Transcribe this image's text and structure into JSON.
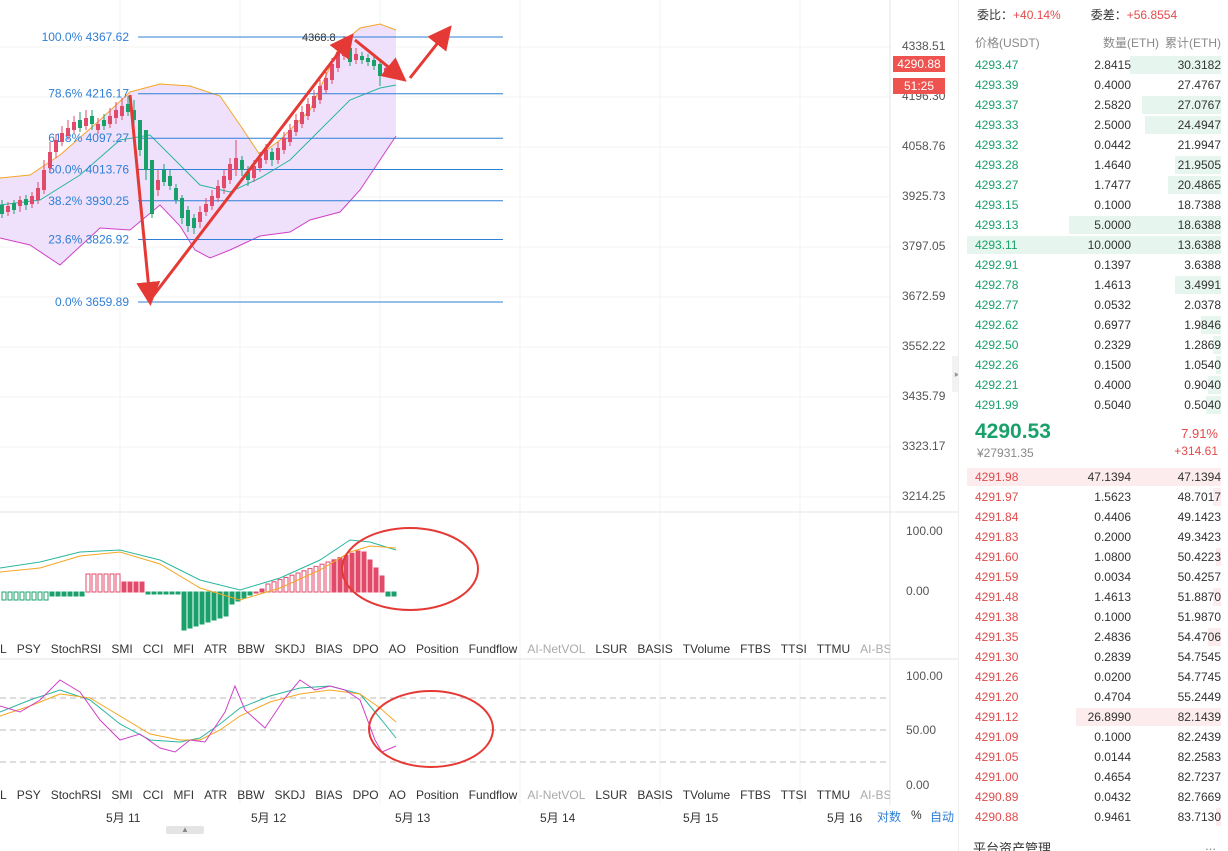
{
  "chart": {
    "price_scale": [
      "4338.51",
      "4196.30",
      "4058.76",
      "3925.73",
      "3797.05",
      "3672.59",
      "3552.22",
      "3435.79",
      "3323.17",
      "3214.25"
    ],
    "last_price_tag": "4290.88",
    "countdown_tag": "51:25",
    "peak_label": "4368.8",
    "fib_levels": [
      {
        "label": "100.0% 4367.62"
      },
      {
        "label": "78.6% 4216.17"
      },
      {
        "label": "61.8% 4097.27"
      },
      {
        "label": "50.0% 4013.76"
      },
      {
        "label": "38.2% 3930.25"
      },
      {
        "label": "23.6% 3826.92"
      },
      {
        "label": "0.0% 3659.89"
      }
    ],
    "macd_scale": [
      "100.00",
      "0.00"
    ],
    "kdj_scale": [
      "100.00",
      "50.00",
      "0.00"
    ],
    "indicator_tabs": [
      "L",
      "PSY",
      "StochRSI",
      "SMI",
      "CCI",
      "MFI",
      "ATR",
      "BBW",
      "SKDJ",
      "BIAS",
      "DPO",
      "AO",
      "Position",
      "Fundflow",
      "AI-NetVOL",
      "LSUR",
      "BASIS",
      "TVolume",
      "FTBS",
      "TTSI",
      "TTMU",
      "AI-BSI"
    ],
    "muted_tabs": [
      "AI-NetVOL",
      "AI-BSI"
    ],
    "dates": [
      "5月 11",
      "5月 12",
      "5月 13",
      "5月 14",
      "5月 15",
      "5月 16"
    ],
    "axis_controls": {
      "log": "对数",
      "percent": "%",
      "auto": "自动"
    },
    "colors": {
      "up": "#e24a6a",
      "down": "#1aa16b",
      "fib": "#2e7fd6",
      "annotation": "#e53935",
      "band_fill": "#efe0fb"
    }
  },
  "order_book": {
    "stats": [
      {
        "key": "委比：",
        "value": "+40.14%"
      },
      {
        "key": "委差：",
        "value": "+56.8554"
      }
    ],
    "headers": {
      "price": "价格(USDT)",
      "amount": "数量(ETH)",
      "total": "累计(ETH)"
    },
    "bids": [
      {
        "price": "4293.47",
        "amount": "2.8415",
        "total": "30.3182",
        "depth": 0.36
      },
      {
        "price": "4293.39",
        "amount": "0.4000",
        "total": "27.4767",
        "depth": 0.0
      },
      {
        "price": "4293.37",
        "amount": "2.5820",
        "total": "27.0767",
        "depth": 0.31
      },
      {
        "price": "4293.33",
        "amount": "2.5000",
        "total": "24.4947",
        "depth": 0.3
      },
      {
        "price": "4293.32",
        "amount": "0.0442",
        "total": "21.9947",
        "depth": 0.0
      },
      {
        "price": "4293.28",
        "amount": "1.4640",
        "total": "21.9505",
        "depth": 0.18
      },
      {
        "price": "4293.27",
        "amount": "1.7477",
        "total": "20.4865",
        "depth": 0.21
      },
      {
        "price": "4293.15",
        "amount": "0.1000",
        "total": "18.7388",
        "depth": 0.0
      },
      {
        "price": "4293.13",
        "amount": "5.0000",
        "total": "18.6388",
        "depth": 0.6
      },
      {
        "price": "4293.11",
        "amount": "10.0000",
        "total": "13.6388",
        "depth": 1.0
      },
      {
        "price": "4292.91",
        "amount": "0.1397",
        "total": "3.6388",
        "depth": 0.0
      },
      {
        "price": "4292.78",
        "amount": "1.4613",
        "total": "3.4991",
        "depth": 0.18
      },
      {
        "price": "4292.77",
        "amount": "0.0532",
        "total": "2.0378",
        "depth": 0.0
      },
      {
        "price": "4292.62",
        "amount": "0.6977",
        "total": "1.9846",
        "depth": 0.08
      },
      {
        "price": "4292.50",
        "amount": "0.2329",
        "total": "1.2869",
        "depth": 0.03
      },
      {
        "price": "4292.26",
        "amount": "0.1500",
        "total": "1.0540",
        "depth": 0.02
      },
      {
        "price": "4292.21",
        "amount": "0.4000",
        "total": "0.9040",
        "depth": 0.05
      },
      {
        "price": "4291.99",
        "amount": "0.5040",
        "total": "0.5040",
        "depth": 0.06
      }
    ],
    "mid": {
      "price": "4290.53",
      "cny": "¥27931.35",
      "pct": "7.91%",
      "change": "+314.61"
    },
    "asks": [
      {
        "price": "4291.98",
        "amount": "47.1394",
        "total": "47.1394",
        "depth": 1.0
      },
      {
        "price": "4291.97",
        "amount": "1.5623",
        "total": "48.7017",
        "depth": 0.03
      },
      {
        "price": "4291.84",
        "amount": "0.4406",
        "total": "49.1423",
        "depth": 0.0
      },
      {
        "price": "4291.83",
        "amount": "0.2000",
        "total": "49.3423",
        "depth": 0.0
      },
      {
        "price": "4291.60",
        "amount": "1.0800",
        "total": "50.4223",
        "depth": 0.02
      },
      {
        "price": "4291.59",
        "amount": "0.0034",
        "total": "50.4257",
        "depth": 0.0
      },
      {
        "price": "4291.48",
        "amount": "1.4613",
        "total": "51.8870",
        "depth": 0.03
      },
      {
        "price": "4291.38",
        "amount": "0.1000",
        "total": "51.9870",
        "depth": 0.0
      },
      {
        "price": "4291.35",
        "amount": "2.4836",
        "total": "54.4706",
        "depth": 0.05
      },
      {
        "price": "4291.30",
        "amount": "0.2839",
        "total": "54.7545",
        "depth": 0.0
      },
      {
        "price": "4291.26",
        "amount": "0.0200",
        "total": "54.7745",
        "depth": 0.0
      },
      {
        "price": "4291.20",
        "amount": "0.4704",
        "total": "55.2449",
        "depth": 0.0
      },
      {
        "price": "4291.12",
        "amount": "26.8990",
        "total": "82.1439",
        "depth": 0.57
      },
      {
        "price": "4291.09",
        "amount": "0.1000",
        "total": "82.2439",
        "depth": 0.0
      },
      {
        "price": "4291.05",
        "amount": "0.0144",
        "total": "82.2583",
        "depth": 0.0
      },
      {
        "price": "4291.00",
        "amount": "0.4654",
        "total": "82.7237",
        "depth": 0.0
      },
      {
        "price": "4290.89",
        "amount": "0.0432",
        "total": "82.7669",
        "depth": 0.0
      },
      {
        "price": "4290.88",
        "amount": "0.9461",
        "total": "83.7130",
        "depth": 0.02
      }
    ],
    "footer": "平台资产管理",
    "more": "..."
  }
}
